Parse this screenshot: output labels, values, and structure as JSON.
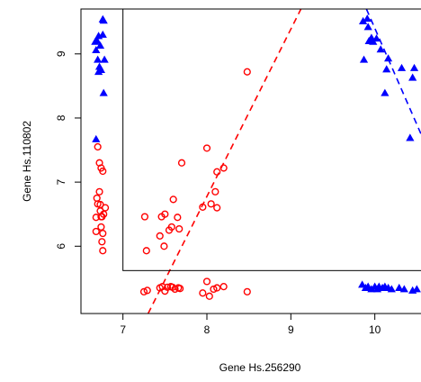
{
  "chart_data": {
    "type": "scatter",
    "title": "",
    "xlabel": "Gene Hs.256290",
    "ylabel": "Gene Hs.110802",
    "xlim": [
      6.5,
      10.55
    ],
    "ylim": [
      4.95,
      9.7
    ],
    "x_ticks": [
      7,
      8,
      9,
      10
    ],
    "y_ticks": [
      6,
      7,
      8,
      9
    ],
    "grid": false,
    "legend": "none",
    "colors": {
      "red": "#ff0000",
      "blue": "#0000ff",
      "frame": "#000000"
    },
    "series": [
      {
        "marker": "open-circle",
        "color": "#ff0000",
        "points": [
          [
            6.7,
            7.55
          ],
          [
            6.72,
            7.3
          ],
          [
            6.74,
            7.22
          ],
          [
            6.76,
            7.17
          ],
          [
            6.69,
            6.75
          ],
          [
            6.72,
            6.85
          ],
          [
            6.7,
            6.66
          ],
          [
            6.73,
            6.65
          ],
          [
            6.79,
            6.6
          ],
          [
            6.68,
            6.45
          ],
          [
            6.73,
            6.55
          ],
          [
            6.74,
            6.46
          ],
          [
            6.77,
            6.5
          ],
          [
            6.75,
            6.46
          ],
          [
            6.68,
            6.23
          ],
          [
            6.74,
            6.3
          ],
          [
            6.76,
            6.2
          ],
          [
            6.75,
            6.07
          ],
          [
            6.76,
            5.93
          ],
          [
            7.26,
            6.46
          ],
          [
            7.28,
            5.93
          ],
          [
            7.46,
            6.46
          ],
          [
            7.5,
            6.5
          ],
          [
            7.44,
            6.16
          ],
          [
            7.49,
            6.0
          ],
          [
            7.55,
            6.25
          ],
          [
            7.58,
            6.3
          ],
          [
            7.6,
            6.73
          ],
          [
            7.65,
            6.45
          ],
          [
            7.67,
            6.27
          ],
          [
            7.7,
            7.3
          ],
          [
            7.95,
            6.61
          ],
          [
            8.0,
            7.53
          ],
          [
            8.05,
            6.66
          ],
          [
            8.1,
            6.85
          ],
          [
            8.12,
            7.16
          ],
          [
            8.12,
            6.6
          ],
          [
            8.2,
            7.22
          ],
          [
            8.48,
            8.72
          ],
          [
            7.25,
            5.29
          ],
          [
            7.29,
            5.31
          ],
          [
            7.44,
            5.35
          ],
          [
            7.47,
            5.37
          ],
          [
            7.5,
            5.3
          ],
          [
            7.53,
            5.36
          ],
          [
            7.57,
            5.37
          ],
          [
            7.59,
            5.36
          ],
          [
            7.62,
            5.33
          ],
          [
            7.66,
            5.35
          ],
          [
            7.68,
            5.34
          ],
          [
            7.95,
            5.27
          ],
          [
            8.0,
            5.45
          ],
          [
            8.03,
            5.22
          ],
          [
            8.08,
            5.33
          ],
          [
            8.12,
            5.35
          ],
          [
            8.2,
            5.37
          ],
          [
            8.48,
            5.29
          ]
        ]
      },
      {
        "marker": "filled-triangle",
        "color": "#0000ff",
        "points": [
          [
            6.76,
            9.54
          ],
          [
            6.77,
            9.52
          ],
          [
            6.71,
            9.28
          ],
          [
            6.76,
            9.3
          ],
          [
            6.67,
            9.19
          ],
          [
            6.69,
            9.21
          ],
          [
            6.73,
            9.13
          ],
          [
            6.68,
            9.06
          ],
          [
            6.7,
            8.91
          ],
          [
            6.78,
            8.91
          ],
          [
            6.72,
            8.8
          ],
          [
            6.74,
            8.75
          ],
          [
            6.71,
            8.72
          ],
          [
            6.77,
            8.39
          ],
          [
            6.68,
            7.67
          ],
          [
            9.86,
            9.51
          ],
          [
            9.91,
            9.55
          ],
          [
            9.92,
            9.42
          ],
          [
            9.96,
            9.25
          ],
          [
            9.93,
            9.2
          ],
          [
            9.98,
            9.19
          ],
          [
            10.02,
            9.24
          ],
          [
            9.87,
            8.91
          ],
          [
            10.07,
            9.07
          ],
          [
            10.16,
            8.93
          ],
          [
            10.14,
            8.76
          ],
          [
            10.12,
            8.39
          ],
          [
            10.32,
            8.78
          ],
          [
            10.45,
            8.63
          ],
          [
            10.47,
            8.78
          ],
          [
            10.42,
            7.69
          ],
          [
            9.85,
            5.4
          ],
          [
            9.89,
            5.35
          ],
          [
            9.92,
            5.37
          ],
          [
            9.96,
            5.33
          ],
          [
            10.0,
            5.37
          ],
          [
            10.03,
            5.33
          ],
          [
            10.05,
            5.37
          ],
          [
            10.09,
            5.35
          ],
          [
            10.12,
            5.37
          ],
          [
            10.16,
            5.35
          ],
          [
            10.2,
            5.33
          ],
          [
            10.29,
            5.35
          ],
          [
            10.35,
            5.33
          ],
          [
            10.45,
            5.31
          ],
          [
            10.5,
            5.33
          ]
        ]
      }
    ],
    "fit_lines": [
      {
        "color": "#ff0000",
        "style": "dashed",
        "from": [
          7.3,
          4.95
        ],
        "to": [
          9.12,
          9.7
        ]
      },
      {
        "color": "#0000ff",
        "style": "dashed",
        "from": [
          9.9,
          9.7
        ],
        "to": [
          10.55,
          7.75
        ]
      }
    ],
    "inner_box": {
      "x_from": 7.0,
      "y_from": 5.62
    }
  }
}
